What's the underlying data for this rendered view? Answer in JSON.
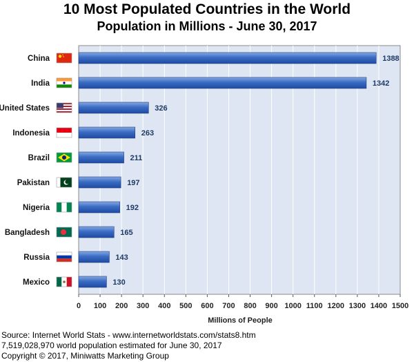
{
  "chart_data": {
    "type": "bar",
    "orientation": "horizontal",
    "title": "10 Most Populated Countries in the World",
    "subtitle": "Population in Millions  -  June 30, 2017",
    "categories": [
      "China",
      "India",
      "United States",
      "Indonesia",
      "Brazil",
      "Pakistan",
      "Nigeria",
      "Bangladesh",
      "Russia",
      "Mexico"
    ],
    "values": [
      1388,
      1342,
      326,
      263,
      211,
      197,
      192,
      165,
      143,
      130
    ],
    "xlabel": "Millions of People",
    "ylabel": "",
    "xlim": [
      0,
      1500
    ],
    "xticks": [
      0,
      100,
      200,
      300,
      400,
      500,
      600,
      700,
      800,
      900,
      1000,
      1100,
      1200,
      1300,
      1400,
      1500
    ],
    "grid": true,
    "bar_color": "#3a6cc4",
    "plot_background": "#dde6f2",
    "label_color": "#1f3864"
  },
  "footer": {
    "source": "Source:  Internet World Stats  -  www.internetworldstats.com/stats8.htm",
    "population_note": "7,519,028,970 world population estimated for June 30, 2017",
    "copyright": "Copyright © 2017, Miniwatts Marketing Group"
  }
}
